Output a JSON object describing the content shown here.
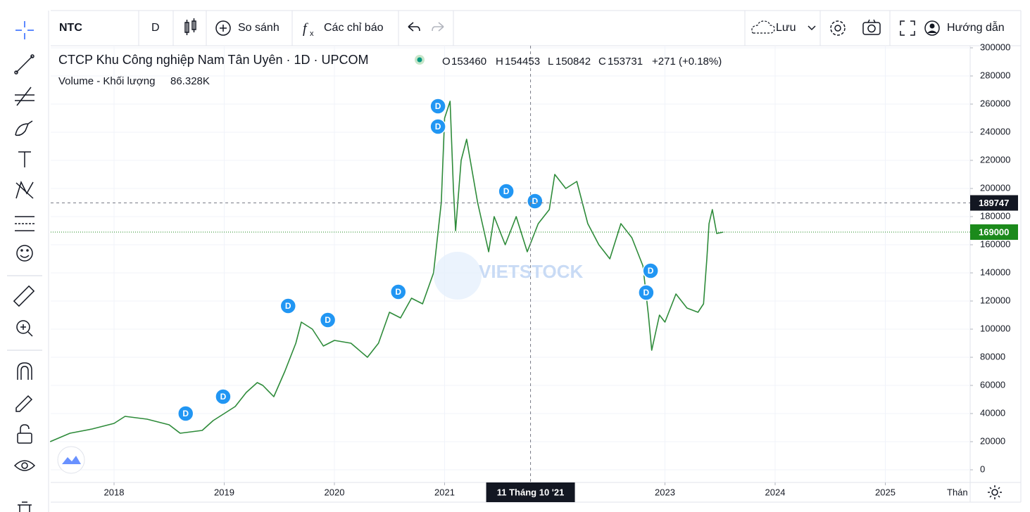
{
  "toolbar": {
    "symbol": "NTC",
    "interval": "D",
    "compare": "So sánh",
    "indicators": "Các chỉ báo",
    "save": "Lưu",
    "guide": "Hướng dẫn"
  },
  "legend": {
    "title": "CTCP Khu Công nghiệp Nam Tân Uyên · 1D · UPCOM",
    "open": {
      "label": "O",
      "value": 153460
    },
    "high": {
      "label": "H",
      "value": 154453
    },
    "low": {
      "label": "L",
      "value": 150842
    },
    "close": {
      "label": "C",
      "value": 153731
    },
    "change": "+271 (+0.18%)",
    "volume_label": "Volume - Khối lượng",
    "volume_value": "86.328K"
  },
  "watermark": "VIETSTOCK",
  "chart_data": {
    "type": "line",
    "x": [
      2017.42,
      2017.6,
      2017.8,
      2018.0,
      2018.1,
      2018.3,
      2018.5,
      2018.6,
      2018.8,
      2018.9,
      2019.0,
      2019.1,
      2019.2,
      2019.3,
      2019.35,
      2019.45,
      2019.55,
      2019.65,
      2019.7,
      2019.8,
      2019.9,
      2020.0,
      2020.15,
      2020.3,
      2020.4,
      2020.5,
      2020.6,
      2020.7,
      2020.8,
      2020.9,
      2020.97,
      2021.0,
      2021.05,
      2021.08,
      2021.1,
      2021.15,
      2021.2,
      2021.3,
      2021.4,
      2021.45,
      2021.55,
      2021.65,
      2021.75,
      2021.85,
      2021.95,
      2022.0,
      2022.1,
      2022.2,
      2022.3,
      2022.4,
      2022.5,
      2022.6,
      2022.7,
      2022.8,
      2022.85,
      2022.88,
      2022.95,
      2023.0,
      2023.1,
      2023.2,
      2023.3,
      2023.35,
      2023.38,
      2023.4,
      2023.43,
      2023.47,
      2023.53
    ],
    "series": [
      {
        "name": "NTC",
        "color": "#2e8b3a",
        "values": [
          20000,
          26000,
          29000,
          33000,
          38000,
          36000,
          32000,
          26000,
          28000,
          35000,
          40000,
          45000,
          55000,
          62000,
          60000,
          52000,
          70000,
          90000,
          105000,
          100000,
          88000,
          92000,
          90000,
          80000,
          90000,
          112000,
          108000,
          122000,
          118000,
          140000,
          190000,
          250000,
          262000,
          200000,
          170000,
          220000,
          235000,
          190000,
          155000,
          180000,
          160000,
          180000,
          155000,
          175000,
          185000,
          210000,
          200000,
          205000,
          175000,
          160000,
          150000,
          175000,
          165000,
          145000,
          110000,
          85000,
          110000,
          105000,
          125000,
          115000,
          112000,
          118000,
          150000,
          175000,
          185000,
          168000,
          169000
        ]
      }
    ],
    "xlim": [
      2017.425,
      2025.77
    ],
    "xticks": [
      2018,
      2019,
      2020,
      2021,
      2023,
      2024,
      2025
    ],
    "x_extra_label": "Thán",
    "ylim": [
      -9000,
      301500
    ],
    "yticks": [
      0,
      20000,
      40000,
      60000,
      80000,
      100000,
      120000,
      140000,
      160000,
      180000,
      200000,
      220000,
      240000,
      260000,
      280000,
      300000
    ],
    "grid": true,
    "crosshair": {
      "x": {
        "value": 2021.78,
        "label": "11 Tháng 10 '21"
      },
      "y": 189747
    },
    "last_price": 169000,
    "dividends": [
      {
        "x": 2018.65,
        "y": 40000,
        "label": "D"
      },
      {
        "x": 2018.99,
        "y": 52000,
        "label": "D"
      },
      {
        "x": 2019.58,
        "y": 116500,
        "label": "D"
      },
      {
        "x": 2019.94,
        "y": 106500,
        "label": "D"
      },
      {
        "x": 2020.58,
        "y": 126500,
        "label": "D"
      },
      {
        "x": 2020.94,
        "y": 258500,
        "label": "D"
      },
      {
        "x": 2020.94,
        "y": 244000,
        "label": "D"
      },
      {
        "x": 2021.56,
        "y": 198000,
        "label": "D"
      },
      {
        "x": 2021.82,
        "y": 191000,
        "label": "D"
      },
      {
        "x": 2022.87,
        "y": 141500,
        "label": "D"
      },
      {
        "x": 2022.83,
        "y": 126000,
        "label": "D"
      }
    ]
  }
}
